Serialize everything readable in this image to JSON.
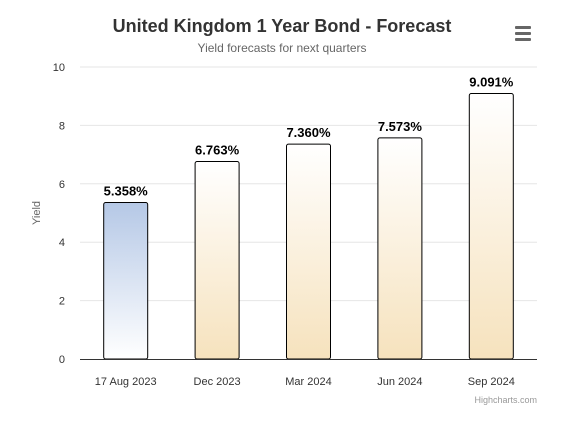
{
  "chart": {
    "title": "United Kingdom 1 Year Bond - Forecast",
    "subtitle": "Yield forecasts for next quarters",
    "credits": "Highcharts.com",
    "menu_icon": "hamburger-menu-icon"
  },
  "chart_data": {
    "type": "bar",
    "title": "United Kingdom 1 Year Bond - Forecast",
    "subtitle": "Yield forecasts for next quarters",
    "xlabel": "",
    "ylabel": "Yield",
    "categories": [
      "17 Aug 2023",
      "Dec 2023",
      "Mar 2024",
      "Jun 2024",
      "Sep 2024"
    ],
    "values": [
      5.358,
      6.763,
      7.36,
      7.573,
      9.091
    ],
    "data_labels": [
      "5.358%",
      "6.763%",
      "7.360%",
      "7.573%",
      "9.091%"
    ],
    "ylim": [
      0,
      10
    ],
    "yticks": [
      0,
      2,
      4,
      6,
      8,
      10
    ],
    "grid": true,
    "legend": "none",
    "colors": {
      "current": [
        "#b5c8e6",
        "#ffffff"
      ],
      "forecast": [
        "#ffffff",
        "#f6e2bd"
      ],
      "border": "#000000",
      "grid": "#e6e6e6",
      "axis": "#333333"
    }
  }
}
